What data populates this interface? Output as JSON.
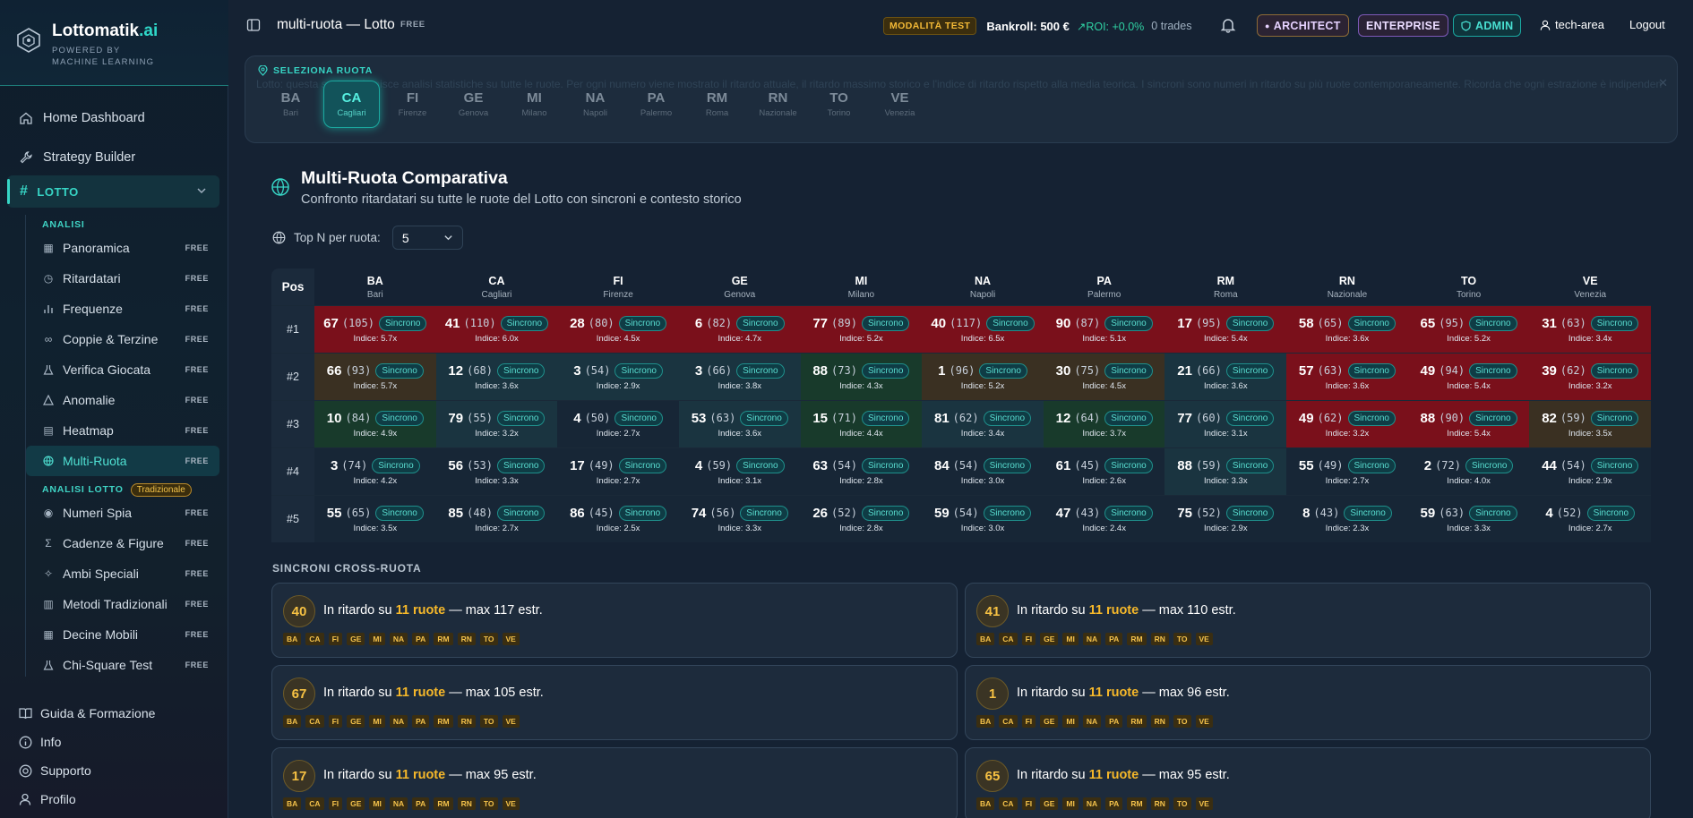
{
  "brand": {
    "name": "Lottomatik",
    "suffix": ".ai",
    "tagline": "POWERED BY MACHINE LEARNING"
  },
  "nav_top": [
    {
      "label": "Home Dashboard",
      "icon": "home-icon"
    },
    {
      "label": "Strategy Builder",
      "icon": "wrench-icon"
    }
  ],
  "lotto_section": {
    "label": "LOTTO"
  },
  "analisi": {
    "label": "ANALISI",
    "items": [
      {
        "label": "Panoramica",
        "badge": "FREE",
        "icon": "grid-icon"
      },
      {
        "label": "Ritardatari",
        "badge": "FREE",
        "icon": "clock-icon"
      },
      {
        "label": "Frequenze",
        "badge": "FREE",
        "icon": "bar-chart-icon"
      },
      {
        "label": "Coppie & Terzine",
        "badge": "FREE",
        "icon": "link-icon"
      },
      {
        "label": "Verifica Giocata",
        "badge": "FREE",
        "icon": "flask-icon"
      },
      {
        "label": "Anomalie",
        "badge": "FREE",
        "icon": "warning-icon"
      },
      {
        "label": "Heatmap",
        "badge": "FREE",
        "icon": "map-icon"
      },
      {
        "label": "Multi-Ruota",
        "badge": "FREE",
        "icon": "globe-icon",
        "active": true
      }
    ]
  },
  "analisi_lotto": {
    "label": "ANALISI LOTTO",
    "pill": "Tradizionale",
    "items": [
      {
        "label": "Numeri Spia",
        "badge": "FREE",
        "icon": "eye-icon"
      },
      {
        "label": "Cadenze & Figure",
        "badge": "FREE",
        "icon": "sigma-icon"
      },
      {
        "label": "Ambi Speciali",
        "badge": "FREE",
        "icon": "sparkle-icon"
      },
      {
        "label": "Metodi Tradizionali",
        "badge": "FREE",
        "icon": "book-icon"
      },
      {
        "label": "Decine Mobili",
        "badge": "FREE",
        "icon": "grid-icon"
      },
      {
        "label": "Chi-Square Test",
        "badge": "FREE",
        "icon": "flask-icon"
      }
    ]
  },
  "nav_bottom": [
    {
      "label": "Guida & Formazione",
      "icon": "book-open-icon"
    },
    {
      "label": "Info",
      "icon": "info-icon"
    },
    {
      "label": "Supporto",
      "icon": "lifebuoy-icon"
    },
    {
      "label": "Profilo",
      "icon": "user-icon"
    }
  ],
  "topbar": {
    "title": "multi-ruota — Lotto",
    "free": "FREE",
    "mode": "MODALITÀ TEST",
    "bankroll": "Bankroll: 500 €",
    "roi": "↗ROI: +0.0%",
    "trades": "0 trades",
    "badges": {
      "architect": "ARCHITECT",
      "enterprise": "ENTERPRISE",
      "admin": "ADMIN"
    },
    "user": "tech-area",
    "logout": "Logout"
  },
  "selector": {
    "label": "SELEZIONA RUOTA",
    "ghost_text": "Lotto: questa sezione fornisce analisi statistiche su tutte le ruote. Per ogni numero viene mostrato il ritardo attuale, il ritardo massimo storico e l'indice di ritardo rispetto alla media teorica. I sincroni sono numeri in ritardo su più ruote contemporaneamente. Ricorda che ogni estrazione è indipendente e che nessuna analisi storica può prevedere i numeri futuri. Gioca responsabilmente.",
    "ruote": [
      {
        "code": "BA",
        "name": "Bari"
      },
      {
        "code": "CA",
        "name": "Cagliari",
        "active": true
      },
      {
        "code": "FI",
        "name": "Firenze"
      },
      {
        "code": "GE",
        "name": "Genova"
      },
      {
        "code": "MI",
        "name": "Milano"
      },
      {
        "code": "NA",
        "name": "Napoli"
      },
      {
        "code": "PA",
        "name": "Palermo"
      },
      {
        "code": "RM",
        "name": "Roma"
      },
      {
        "code": "RN",
        "name": "Nazionale"
      },
      {
        "code": "TO",
        "name": "Torino"
      },
      {
        "code": "VE",
        "name": "Venezia"
      }
    ]
  },
  "main": {
    "title": "Multi-Ruota Comparativa",
    "subtitle": "Confronto ritardatari su tutte le ruote del Lotto con sincroni e contesto storico",
    "topn_label": "Top N per ruota:",
    "topn_value": "5",
    "pos_header": "Pos",
    "sync_label": "Sincrono",
    "idx_prefix": "Indice: ",
    "cross_title": "SINCRONI CROSS-RUOTA"
  },
  "grid": {
    "rows": [
      {
        "pos": "#1",
        "cells": [
          {
            "n": "67",
            "r": "(105)",
            "i": "5.7x",
            "h": "red"
          },
          {
            "n": "41",
            "r": "(110)",
            "i": "6.0x",
            "h": "red"
          },
          {
            "n": "28",
            "r": "(80)",
            "i": "4.5x",
            "h": "red"
          },
          {
            "n": "6",
            "r": "(82)",
            "i": "4.7x",
            "h": "red"
          },
          {
            "n": "77",
            "r": "(89)",
            "i": "5.2x",
            "h": "red"
          },
          {
            "n": "40",
            "r": "(117)",
            "i": "6.5x",
            "h": "red"
          },
          {
            "n": "90",
            "r": "(87)",
            "i": "5.1x",
            "h": "red"
          },
          {
            "n": "17",
            "r": "(95)",
            "i": "5.4x",
            "h": "red"
          },
          {
            "n": "58",
            "r": "(65)",
            "i": "3.6x",
            "h": "red"
          },
          {
            "n": "65",
            "r": "(95)",
            "i": "5.2x",
            "h": "red"
          },
          {
            "n": "31",
            "r": "(63)",
            "i": "3.4x",
            "h": "red"
          }
        ]
      },
      {
        "pos": "#2",
        "cells": [
          {
            "n": "66",
            "r": "(93)",
            "i": "5.7x",
            "h": "olive"
          },
          {
            "n": "12",
            "r": "(68)",
            "i": "3.6x",
            "h": "teal"
          },
          {
            "n": "3",
            "r": "(54)",
            "i": "2.9x",
            "h": "teal"
          },
          {
            "n": "3",
            "r": "(66)",
            "i": "3.8x",
            "h": "teal"
          },
          {
            "n": "88",
            "r": "(73)",
            "i": "4.3x",
            "h": "green"
          },
          {
            "n": "1",
            "r": "(96)",
            "i": "5.2x",
            "h": "olive"
          },
          {
            "n": "30",
            "r": "(75)",
            "i": "4.5x",
            "h": "olive"
          },
          {
            "n": "21",
            "r": "(66)",
            "i": "3.6x",
            "h": "teal"
          },
          {
            "n": "57",
            "r": "(63)",
            "i": "3.6x",
            "h": "red"
          },
          {
            "n": "49",
            "r": "(94)",
            "i": "5.4x",
            "h": "red"
          },
          {
            "n": "39",
            "r": "(62)",
            "i": "3.2x",
            "h": "red"
          }
        ]
      },
      {
        "pos": "#3",
        "cells": [
          {
            "n": "10",
            "r": "(84)",
            "i": "4.9x",
            "h": "green"
          },
          {
            "n": "79",
            "r": "(55)",
            "i": "3.2x",
            "h": "teal"
          },
          {
            "n": "4",
            "r": "(50)",
            "i": "2.7x",
            "h": "dark"
          },
          {
            "n": "53",
            "r": "(63)",
            "i": "3.6x",
            "h": "teal"
          },
          {
            "n": "15",
            "r": "(71)",
            "i": "4.4x",
            "h": "green"
          },
          {
            "n": "81",
            "r": "(62)",
            "i": "3.4x",
            "h": "teal"
          },
          {
            "n": "12",
            "r": "(64)",
            "i": "3.7x",
            "h": "green"
          },
          {
            "n": "77",
            "r": "(60)",
            "i": "3.1x",
            "h": "teal"
          },
          {
            "n": "49",
            "r": "(62)",
            "i": "3.2x",
            "h": "red"
          },
          {
            "n": "88",
            "r": "(90)",
            "i": "5.4x",
            "h": "red"
          },
          {
            "n": "82",
            "r": "(59)",
            "i": "3.5x",
            "h": "olive"
          }
        ]
      },
      {
        "pos": "#4",
        "cells": [
          {
            "n": "3",
            "r": "(74)",
            "i": "4.2x",
            "h": "dark"
          },
          {
            "n": "56",
            "r": "(53)",
            "i": "3.3x",
            "h": "dark"
          },
          {
            "n": "17",
            "r": "(49)",
            "i": "2.7x",
            "h": "dark"
          },
          {
            "n": "4",
            "r": "(59)",
            "i": "3.1x",
            "h": "dark"
          },
          {
            "n": "63",
            "r": "(54)",
            "i": "2.8x",
            "h": "dark"
          },
          {
            "n": "84",
            "r": "(54)",
            "i": "3.0x",
            "h": "dark"
          },
          {
            "n": "61",
            "r": "(45)",
            "i": "2.6x",
            "h": "dark"
          },
          {
            "n": "88",
            "r": "(59)",
            "i": "3.3x",
            "h": "teal"
          },
          {
            "n": "55",
            "r": "(49)",
            "i": "2.7x",
            "h": "dark"
          },
          {
            "n": "2",
            "r": "(72)",
            "i": "4.0x",
            "h": "dark"
          },
          {
            "n": "44",
            "r": "(54)",
            "i": "2.9x",
            "h": "dark"
          }
        ]
      },
      {
        "pos": "#5",
        "cells": [
          {
            "n": "55",
            "r": "(65)",
            "i": "3.5x",
            "h": "dark"
          },
          {
            "n": "85",
            "r": "(48)",
            "i": "2.7x",
            "h": "dark"
          },
          {
            "n": "86",
            "r": "(45)",
            "i": "2.5x",
            "h": "dark"
          },
          {
            "n": "74",
            "r": "(56)",
            "i": "3.3x",
            "h": "dark"
          },
          {
            "n": "26",
            "r": "(52)",
            "i": "2.8x",
            "h": "dark"
          },
          {
            "n": "59",
            "r": "(54)",
            "i": "3.0x",
            "h": "dark"
          },
          {
            "n": "47",
            "r": "(43)",
            "i": "2.4x",
            "h": "dark"
          },
          {
            "n": "75",
            "r": "(52)",
            "i": "2.9x",
            "h": "dark"
          },
          {
            "n": "8",
            "r": "(43)",
            "i": "2.3x",
            "h": "dark"
          },
          {
            "n": "59",
            "r": "(63)",
            "i": "3.3x",
            "h": "dark"
          },
          {
            "n": "4",
            "r": "(52)",
            "i": "2.7x",
            "h": "dark"
          }
        ]
      }
    ]
  },
  "cross": {
    "chips": [
      "BA",
      "CA",
      "FI",
      "GE",
      "MI",
      "NA",
      "PA",
      "RM",
      "RN",
      "TO",
      "VE"
    ],
    "cards": [
      {
        "num": "40",
        "pre": "In ritardo su ",
        "hl": "11 ruote",
        "post": " — max 117 estr."
      },
      {
        "num": "41",
        "pre": "In ritardo su ",
        "hl": "11 ruote",
        "post": " — max 110 estr."
      },
      {
        "num": "67",
        "pre": "In ritardo su ",
        "hl": "11 ruote",
        "post": " — max 105 estr."
      },
      {
        "num": "1",
        "pre": "In ritardo su ",
        "hl": "11 ruote",
        "post": " — max 96 estr."
      },
      {
        "num": "17",
        "pre": "In ritardo su ",
        "hl": "11 ruote",
        "post": " — max 95 estr."
      },
      {
        "num": "65",
        "pre": "In ritardo su ",
        "hl": "11 ruote",
        "post": " — max 95 estr."
      }
    ]
  },
  "colors": {
    "accent": "#37d6c6",
    "gold": "#f6b82a",
    "heat_red": "#7a101b",
    "heat_green": "#183a2b"
  }
}
